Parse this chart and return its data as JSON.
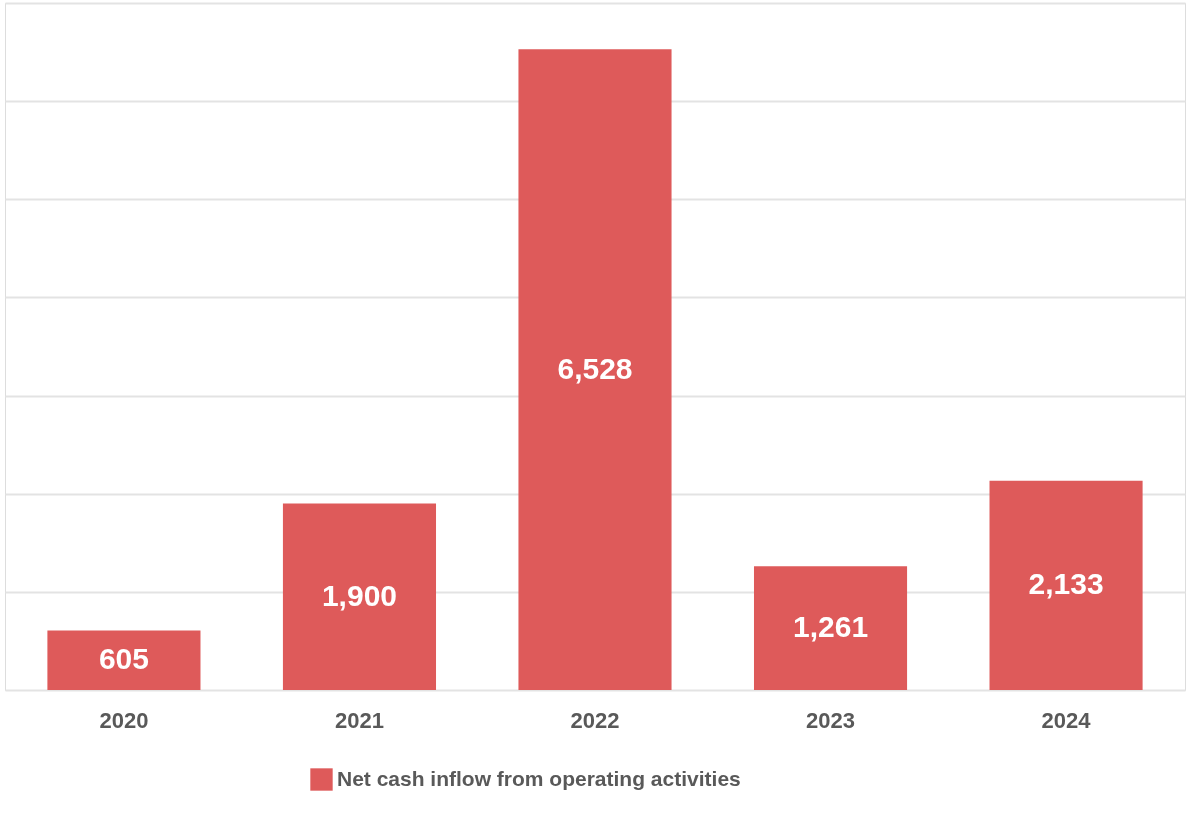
{
  "chart_data": {
    "type": "bar",
    "categories": [
      "2020",
      "2021",
      "2022",
      "2023",
      "2024"
    ],
    "series": [
      {
        "name": "Net cash inflow from operating activities",
        "color": "#de5a5a",
        "values": [
          605,
          1900,
          6528,
          1261,
          2133
        ],
        "value_labels": [
          "605",
          "1,900",
          "6,528",
          "1,261",
          "2,133"
        ]
      }
    ],
    "ylim": [
      0,
      7000
    ],
    "yticks": [
      {
        "value": 0,
        "label": null
      },
      {
        "value": 1000,
        "label": null
      },
      {
        "value": 2000,
        "label": null
      },
      {
        "value": 3000,
        "label": null
      },
      {
        "value": 4000,
        "label": null
      },
      {
        "value": 5000,
        "label": null
      },
      {
        "value": 6000,
        "label": null
      },
      {
        "value": 7000,
        "label": null
      }
    ],
    "tick_labels": "x",
    "grid": "y",
    "legend": "bottom"
  }
}
